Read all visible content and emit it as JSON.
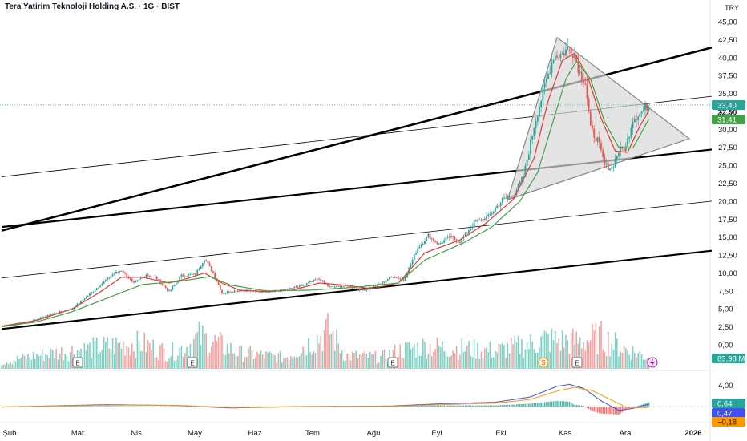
{
  "header": {
    "title": "Tera Yatirim Teknoloji Holding A.S. · 1G · BIST",
    "currency": "TRY"
  },
  "colors": {
    "up": "#26a69a",
    "down": "#ef5350",
    "vol_up": "#7fd1c3",
    "vol_down": "#f4a3a3",
    "sma_fast": "#e53935",
    "sma_slow": "#43a047",
    "macd": "#3f51f5",
    "signal": "#ff9800",
    "trend": "#000000",
    "triangle_fill": "#d9d9d9"
  },
  "chart_data": {
    "type": "candlestick",
    "y_axis": {
      "ticks": [
        "45,00",
        "42,50",
        "40,00",
        "37,50",
        "35,00",
        "32,50",
        "30,00",
        "27,50",
        "25,00",
        "22,50",
        "20,00",
        "17,50",
        "15,00",
        "12,50",
        "10,00",
        "7,50",
        "5,00",
        "2,50",
        "0,00"
      ],
      "ylim": [
        0,
        45
      ]
    },
    "x_axis": {
      "ticks": [
        "Şub",
        "Mar",
        "Nis",
        "May",
        "Haz",
        "Tem",
        "Ağu",
        "Eyl",
        "Eki",
        "Kas",
        "Ara",
        "2026"
      ]
    },
    "price_labels": [
      {
        "text": "33,40",
        "color": "#26a69a"
      },
      {
        "text": "32,50",
        "color": "#131722"
      },
      {
        "text": "31,41",
        "color": "#43a047"
      },
      {
        "text": "83,98 M",
        "color": "#26a69a"
      }
    ],
    "price_keypoints": [
      [
        0,
        2.6
      ],
      [
        15,
        3.2
      ],
      [
        30,
        4.4
      ],
      [
        40,
        5.0
      ],
      [
        52,
        7.5
      ],
      [
        63,
        9.8
      ],
      [
        68,
        10.4
      ],
      [
        75,
        8.5
      ],
      [
        82,
        9.8
      ],
      [
        88,
        9.2
      ],
      [
        95,
        7.4
      ],
      [
        102,
        9.6
      ],
      [
        110,
        9.8
      ],
      [
        115,
        12.0
      ],
      [
        120,
        10.0
      ],
      [
        125,
        7.2
      ],
      [
        135,
        7.6
      ],
      [
        145,
        7.4
      ],
      [
        160,
        7.6
      ],
      [
        170,
        8.2
      ],
      [
        180,
        9.2
      ],
      [
        186,
        8.0
      ],
      [
        195,
        8.2
      ],
      [
        205,
        7.6
      ],
      [
        215,
        8.5
      ],
      [
        222,
        9.6
      ],
      [
        228,
        9.0
      ],
      [
        236,
        13.5
      ],
      [
        242,
        15.2
      ],
      [
        248,
        14.0
      ],
      [
        254,
        15.0
      ],
      [
        260,
        14.4
      ],
      [
        268,
        17.0
      ],
      [
        276,
        17.8
      ],
      [
        284,
        20.2
      ],
      [
        290,
        20.7
      ],
      [
        296,
        23.4
      ],
      [
        302,
        30.5
      ],
      [
        308,
        36.0
      ],
      [
        313,
        40.2
      ],
      [
        318,
        40.5
      ],
      [
        322,
        41.5
      ],
      [
        325,
        40.4
      ],
      [
        328,
        37.8
      ],
      [
        331,
        36.6
      ],
      [
        334,
        30.0
      ],
      [
        338,
        28.5
      ],
      [
        342,
        25.0
      ],
      [
        346,
        24.6
      ],
      [
        350,
        27.0
      ],
      [
        354,
        27.5
      ],
      [
        358,
        31.5
      ],
      [
        362,
        32.2
      ],
      [
        367,
        33.4
      ]
    ],
    "sma_fast_keypoints": [
      [
        0,
        2.6
      ],
      [
        20,
        3.4
      ],
      [
        40,
        5.0
      ],
      [
        55,
        7.2
      ],
      [
        68,
        9.4
      ],
      [
        80,
        9.4
      ],
      [
        95,
        8.6
      ],
      [
        105,
        9.2
      ],
      [
        115,
        10.0
      ],
      [
        125,
        8.6
      ],
      [
        135,
        7.6
      ],
      [
        150,
        7.4
      ],
      [
        165,
        7.6
      ],
      [
        180,
        8.6
      ],
      [
        195,
        8.3
      ],
      [
        210,
        7.8
      ],
      [
        225,
        8.6
      ],
      [
        240,
        12.8
      ],
      [
        260,
        14.6
      ],
      [
        275,
        17.0
      ],
      [
        290,
        20.2
      ],
      [
        302,
        26.0
      ],
      [
        310,
        34.0
      ],
      [
        318,
        39.6
      ],
      [
        325,
        40.6
      ],
      [
        332,
        37.6
      ],
      [
        340,
        31.5
      ],
      [
        348,
        27.0
      ],
      [
        355,
        26.8
      ],
      [
        362,
        30.5
      ],
      [
        367,
        32.5
      ]
    ],
    "sma_slow_keypoints": [
      [
        0,
        2.5
      ],
      [
        20,
        3.2
      ],
      [
        40,
        4.6
      ],
      [
        60,
        6.5
      ],
      [
        80,
        8.4
      ],
      [
        100,
        8.8
      ],
      [
        118,
        9.5
      ],
      [
        130,
        8.3
      ],
      [
        150,
        7.5
      ],
      [
        175,
        7.6
      ],
      [
        200,
        8.0
      ],
      [
        225,
        8.6
      ],
      [
        240,
        11.8
      ],
      [
        262,
        14.2
      ],
      [
        278,
        16.4
      ],
      [
        294,
        20.0
      ],
      [
        304,
        24.0
      ],
      [
        312,
        30.5
      ],
      [
        320,
        37.0
      ],
      [
        326,
        39.5
      ],
      [
        334,
        37.0
      ],
      [
        342,
        31.0
      ],
      [
        350,
        27.5
      ],
      [
        358,
        27.4
      ],
      [
        367,
        31.4
      ]
    ],
    "volume_keypoints": [
      [
        0,
        0.15
      ],
      [
        20,
        0.3
      ],
      [
        40,
        0.4
      ],
      [
        60,
        0.5
      ],
      [
        70,
        0.55
      ],
      [
        80,
        0.55
      ],
      [
        95,
        0.35
      ],
      [
        105,
        0.5
      ],
      [
        112,
        0.7
      ],
      [
        120,
        0.6
      ],
      [
        135,
        0.35
      ],
      [
        160,
        0.25
      ],
      [
        180,
        0.7
      ],
      [
        186,
        0.85
      ],
      [
        195,
        0.3
      ],
      [
        215,
        0.25
      ],
      [
        225,
        0.4
      ],
      [
        240,
        0.5
      ],
      [
        260,
        0.45
      ],
      [
        280,
        0.4
      ],
      [
        300,
        0.55
      ],
      [
        308,
        0.65
      ],
      [
        325,
        0.6
      ],
      [
        340,
        0.7
      ],
      [
        350,
        0.5
      ],
      [
        367,
        0.25
      ]
    ],
    "earnings_markers": [
      "E",
      "E",
      "E",
      "E"
    ],
    "dividend_marker": "S",
    "macd_labels": [
      {
        "text": "0,64",
        "color": "#26a69a"
      },
      {
        "text": "0,47",
        "color": "#3f51f5"
      },
      {
        "text": "−0,18",
        "color": "#ff9800"
      }
    ],
    "macd_axis_label": "4,00",
    "macd_keypoints": [
      [
        0,
        -0.1
      ],
      [
        60,
        0.4
      ],
      [
        100,
        0.2
      ],
      [
        130,
        -0.3
      ],
      [
        170,
        0.0
      ],
      [
        220,
        0.1
      ],
      [
        250,
        0.6
      ],
      [
        280,
        0.9
      ],
      [
        300,
        2.0
      ],
      [
        315,
        4.2
      ],
      [
        322,
        4.6
      ],
      [
        330,
        3.8
      ],
      [
        340,
        1.2
      ],
      [
        350,
        -0.8
      ],
      [
        358,
        -0.4
      ],
      [
        367,
        0.5
      ]
    ],
    "signal_keypoints": [
      [
        0,
        -0.1
      ],
      [
        60,
        0.3
      ],
      [
        100,
        0.25
      ],
      [
        130,
        -0.2
      ],
      [
        170,
        -0.05
      ],
      [
        220,
        0.05
      ],
      [
        250,
        0.4
      ],
      [
        280,
        0.7
      ],
      [
        300,
        1.5
      ],
      [
        315,
        3.2
      ],
      [
        325,
        4.0
      ],
      [
        335,
        3.3
      ],
      [
        345,
        1.5
      ],
      [
        355,
        -0.3
      ],
      [
        367,
        -0.2
      ]
    ]
  }
}
